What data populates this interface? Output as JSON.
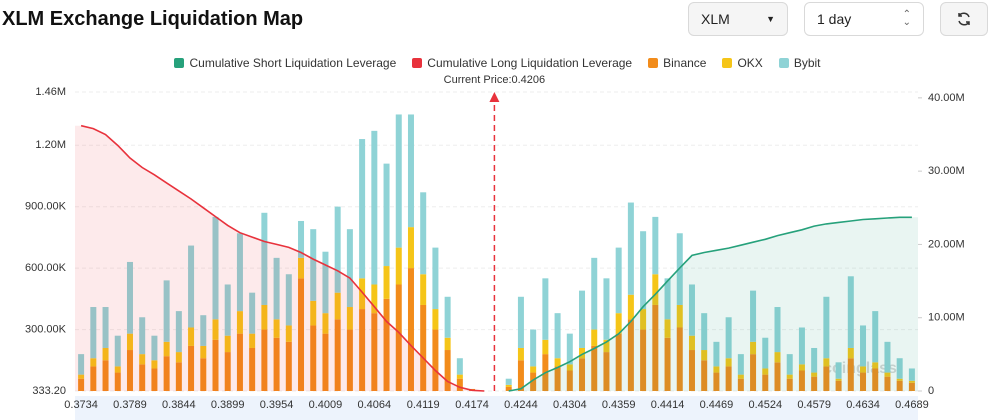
{
  "controls": {
    "symbol": "XLM",
    "interval": "1 day"
  },
  "chart_data": {
    "type": "bar",
    "title": "XLM Exchange Liquidation Map",
    "current_price": {
      "value": 0.4206,
      "label": "Current Price:0.4206"
    },
    "watermark": "coinglass",
    "grid": true,
    "categories": [
      "0.3734",
      null,
      null,
      null,
      "0.3789",
      null,
      null,
      null,
      "0.3844",
      null,
      null,
      null,
      "0.3899",
      null,
      null,
      null,
      "0.3954",
      null,
      null,
      null,
      "0.4009",
      null,
      null,
      null,
      "0.4064",
      null,
      null,
      null,
      "0.4119",
      null,
      null,
      null,
      "0.4174",
      null,
      null,
      null,
      "0.4244",
      null,
      null,
      null,
      "0.4304",
      null,
      null,
      null,
      "0.4359",
      null,
      null,
      null,
      "0.4414",
      null,
      null,
      null,
      "0.4469",
      null,
      null,
      null,
      "0.4524",
      null,
      null,
      null,
      "0.4579",
      null,
      null,
      null,
      "0.4634",
      null,
      null,
      null,
      "0.4689"
    ],
    "ylim": [
      333.2,
      1460000
    ],
    "yticks": [
      {
        "value": 333.2,
        "label": "333.20"
      },
      {
        "value": 300000,
        "label": "300.00K"
      },
      {
        "value": 600000,
        "label": "600.00K"
      },
      {
        "value": 900000,
        "label": "900.00K"
      },
      {
        "value": 1200000,
        "label": "1.20M"
      },
      {
        "value": 1460000,
        "label": "1.46M"
      }
    ],
    "y2lim": [
      0,
      40800000
    ],
    "y2ticks": [
      0,
      {
        "value": 10000000,
        "label": "10.00M"
      },
      {
        "value": 20000000,
        "label": "20.00M"
      },
      {
        "value": 30000000,
        "label": "30.00M"
      },
      {
        "value": 40000000,
        "label": "40.00M"
      }
    ],
    "series": [
      {
        "name": "Cumulative Short Liquidation Leverage",
        "type": "line",
        "axis": "y2",
        "color": "#26a17b",
        "fill": "rgba(38,161,123,0.10)",
        "values": [
          null,
          null,
          null,
          null,
          null,
          null,
          null,
          null,
          null,
          null,
          null,
          null,
          null,
          null,
          null,
          null,
          null,
          null,
          null,
          null,
          null,
          null,
          null,
          null,
          null,
          null,
          null,
          null,
          null,
          null,
          null,
          null,
          null,
          null,
          null,
          0,
          300000,
          1500000,
          2500000,
          3200000,
          4000000,
          5000000,
          5800000,
          6700000,
          7800000,
          9500000,
          11500000,
          13200000,
          15000000,
          16800000,
          18500000,
          18900000,
          19200000,
          19500000,
          19900000,
          20300000,
          20700000,
          21200000,
          21600000,
          22000000,
          22500000,
          22800000,
          23000000,
          23200000,
          23400000,
          23500000,
          23600000,
          23700000,
          23700000
        ]
      },
      {
        "name": "Cumulative Long Liquidation Leverage",
        "type": "line",
        "axis": "y2",
        "color": "#e8323c",
        "fill": "rgba(232,50,60,0.10)",
        "values": [
          36200000,
          35800000,
          35000000,
          33500000,
          31800000,
          30500000,
          29500000,
          28400000,
          27300000,
          26200000,
          25000000,
          23800000,
          22600000,
          21600000,
          21000000,
          20400000,
          20000000,
          19600000,
          18900000,
          18000000,
          17200000,
          16400000,
          15400000,
          13500000,
          11500000,
          9500000,
          8000000,
          6200000,
          4500000,
          2800000,
          1300000,
          500000,
          100000,
          0,
          null,
          null,
          null,
          null,
          null,
          null,
          null,
          null,
          null,
          null,
          null,
          null,
          null,
          null,
          null,
          null,
          null,
          null,
          null,
          null,
          null,
          null,
          null,
          null,
          null,
          null,
          null,
          null,
          null,
          null,
          null,
          null,
          null,
          null,
          null
        ]
      },
      {
        "name": "Binance",
        "type": "bar",
        "color": "#f28c1b",
        "values": [
          60000,
          120000,
          150000,
          90000,
          200000,
          130000,
          110000,
          170000,
          140000,
          220000,
          160000,
          250000,
          190000,
          280000,
          210000,
          300000,
          260000,
          240000,
          550000,
          320000,
          280000,
          350000,
          300000,
          400000,
          380000,
          450000,
          520000,
          600000,
          420000,
          300000,
          200000,
          60000,
          10000,
          0,
          0,
          20000,
          150000,
          90000,
          180000,
          120000,
          100000,
          160000,
          220000,
          190000,
          280000,
          350000,
          300000,
          420000,
          260000,
          310000,
          200000,
          150000,
          90000,
          120000,
          60000,
          180000,
          80000,
          140000,
          60000,
          100000,
          70000,
          120000,
          50000,
          160000,
          90000,
          110000,
          70000,
          50000,
          40000
        ]
      },
      {
        "name": "OKX",
        "type": "bar",
        "color": "#f5c518",
        "values": [
          20000,
          40000,
          60000,
          30000,
          80000,
          50000,
          40000,
          70000,
          50000,
          90000,
          60000,
          100000,
          80000,
          110000,
          70000,
          120000,
          90000,
          80000,
          100000,
          120000,
          100000,
          130000,
          110000,
          150000,
          140000,
          160000,
          180000,
          200000,
          150000,
          100000,
          60000,
          20000,
          0,
          0,
          0,
          10000,
          60000,
          30000,
          70000,
          40000,
          30000,
          50000,
          80000,
          60000,
          100000,
          120000,
          100000,
          150000,
          90000,
          110000,
          70000,
          50000,
          30000,
          40000,
          20000,
          60000,
          30000,
          50000,
          20000,
          30000,
          20000,
          40000,
          10000,
          50000,
          30000,
          30000,
          20000,
          10000,
          10000
        ]
      },
      {
        "name": "Bybit",
        "type": "bar",
        "color": "#8fd3d6",
        "values": [
          100000,
          250000,
          200000,
          150000,
          350000,
          180000,
          120000,
          300000,
          200000,
          400000,
          150000,
          500000,
          250000,
          380000,
          200000,
          450000,
          300000,
          250000,
          180000,
          350000,
          300000,
          420000,
          380000,
          680000,
          750000,
          500000,
          650000,
          550000,
          400000,
          300000,
          200000,
          80000,
          0,
          0,
          0,
          30000,
          250000,
          180000,
          300000,
          220000,
          150000,
          280000,
          350000,
          300000,
          320000,
          450000,
          380000,
          280000,
          200000,
          350000,
          250000,
          180000,
          120000,
          200000,
          100000,
          250000,
          150000,
          220000,
          100000,
          180000,
          120000,
          300000,
          80000,
          350000,
          200000,
          250000,
          150000,
          100000,
          60000
        ]
      }
    ]
  }
}
